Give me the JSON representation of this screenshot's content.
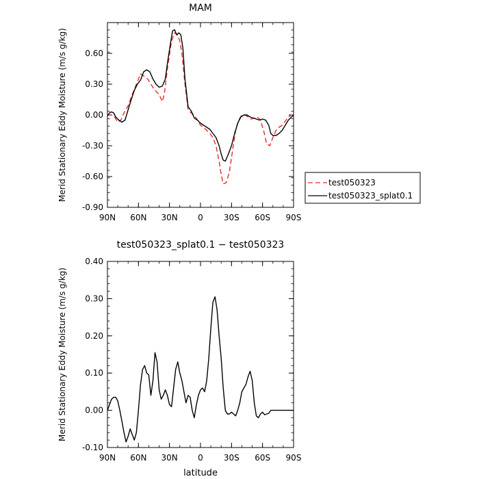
{
  "chart_data": [
    {
      "type": "line",
      "title": "MAM",
      "xlabel": "",
      "ylabel": "Merid Stationary Eddy Moisture (m/s g/kg)",
      "x_ticks": [
        "90N",
        "60N",
        "30N",
        "0",
        "30S",
        "60S",
        "90S"
      ],
      "y_ticks": [
        "0.60",
        "0.30",
        "0.00",
        "-0.30",
        "-0.60",
        "-0.90"
      ],
      "ylim": [
        -0.9,
        0.9
      ],
      "xlim": [
        90,
        -90
      ],
      "legend": {
        "placement": "right, outside plot",
        "entries": [
          "test050323",
          "test050323_splat0.1"
        ]
      },
      "series": [
        {
          "name": "test050323",
          "color": "#e8262a",
          "style": "dashed",
          "x": [
            90,
            86,
            83,
            80,
            77,
            74,
            70,
            66,
            62,
            58,
            55,
            51,
            48,
            44,
            40,
            37,
            35,
            32,
            28,
            25,
            22,
            20,
            18,
            15,
            12,
            9,
            6,
            3,
            0,
            -3,
            -6,
            -9,
            -12,
            -15,
            -18,
            -20,
            -22,
            -25,
            -28,
            -31,
            -34,
            -37,
            -40,
            -43,
            -46,
            -49,
            -52,
            -55,
            -58,
            -61,
            -64,
            -67,
            -70,
            -73,
            -76,
            -79,
            -82,
            -85,
            -88,
            -90
          ],
          "values": [
            0.0,
            0.0,
            -0.02,
            -0.07,
            -0.05,
            0.02,
            0.09,
            0.2,
            0.3,
            0.4,
            0.38,
            0.35,
            0.3,
            0.24,
            0.2,
            0.13,
            0.2,
            0.45,
            0.72,
            0.8,
            0.78,
            0.72,
            0.6,
            0.3,
            0.05,
            0.02,
            0.0,
            -0.05,
            -0.1,
            -0.12,
            -0.15,
            -0.18,
            -0.22,
            -0.3,
            -0.45,
            -0.58,
            -0.67,
            -0.66,
            -0.55,
            -0.35,
            -0.15,
            -0.05,
            0.0,
            0.0,
            -0.02,
            -0.04,
            -0.03,
            -0.02,
            -0.05,
            -0.15,
            -0.28,
            -0.3,
            -0.22,
            -0.15,
            -0.12,
            -0.1,
            -0.06,
            -0.02,
            0.0,
            0.0
          ]
        },
        {
          "name": "test050323_splat0.1",
          "color": "#000000",
          "style": "solid",
          "x": [
            90,
            88,
            86,
            84,
            82,
            79,
            76,
            73,
            70,
            67,
            64,
            61,
            58,
            55,
            52,
            49,
            46,
            43,
            40,
            37,
            34,
            32,
            29,
            27,
            25,
            23,
            21,
            19,
            17,
            15,
            12,
            9,
            6,
            3,
            0,
            -3,
            -6,
            -9,
            -12,
            -15,
            -18,
            -20,
            -22,
            -24,
            -27,
            -30,
            -33,
            -36,
            -39,
            -42,
            -45,
            -48,
            -51,
            -54,
            -57,
            -60,
            -63,
            -66,
            -68,
            -70,
            -73,
            -76,
            -79,
            -82,
            -85,
            -88,
            -90
          ],
          "values": [
            -0.01,
            0.02,
            0.03,
            0.02,
            -0.02,
            -0.05,
            -0.07,
            -0.05,
            0.05,
            0.15,
            0.24,
            0.3,
            0.34,
            0.42,
            0.44,
            0.42,
            0.35,
            0.3,
            0.27,
            0.28,
            0.35,
            0.5,
            0.7,
            0.82,
            0.83,
            0.78,
            0.8,
            0.78,
            0.65,
            0.35,
            0.08,
            0.04,
            -0.03,
            -0.05,
            -0.08,
            -0.1,
            -0.12,
            -0.14,
            -0.18,
            -0.22,
            -0.3,
            -0.38,
            -0.44,
            -0.45,
            -0.38,
            -0.3,
            -0.18,
            -0.08,
            -0.02,
            0.0,
            0.0,
            -0.02,
            -0.03,
            -0.04,
            -0.05,
            -0.04,
            -0.05,
            -0.1,
            -0.18,
            -0.2,
            -0.2,
            -0.18,
            -0.15,
            -0.1,
            -0.05,
            -0.02,
            0.0
          ]
        }
      ]
    },
    {
      "type": "line",
      "title": "test050323_splat0.1 − test050323",
      "xlabel": "latitude",
      "ylabel": "Merid Stationary Eddy Moisture (m/s g/kg)",
      "x_ticks": [
        "90N",
        "60N",
        "30N",
        "0",
        "30S",
        "60S",
        "90S"
      ],
      "y_ticks": [
        "0.40",
        "0.30",
        "0.20",
        "0.10",
        "0.00",
        "-0.10"
      ],
      "ylim": [
        -0.1,
        0.4
      ],
      "xlim": [
        90,
        -90
      ],
      "series": [
        {
          "color": "#000000",
          "style": "solid",
          "x": [
            90,
            88,
            86,
            84,
            82,
            80,
            78,
            76,
            74,
            72,
            70,
            68,
            66,
            64,
            62,
            60,
            58,
            56,
            54,
            52,
            50,
            48,
            46,
            44,
            42,
            40,
            38,
            36,
            34,
            32,
            30,
            28,
            26,
            24,
            22,
            20,
            18,
            16,
            14,
            12,
            10,
            8,
            6,
            4,
            2,
            0,
            -2,
            -4,
            -6,
            -8,
            -10,
            -12,
            -14,
            -16,
            -18,
            -20,
            -22,
            -24,
            -26,
            -28,
            -30,
            -32,
            -34,
            -36,
            -38,
            -40,
            -42,
            -44,
            -46,
            -48,
            -50,
            -52,
            -54,
            -56,
            -58,
            -60,
            -62,
            -64,
            -66,
            -68,
            -70,
            -72,
            -74,
            -76,
            -78,
            -80,
            -82,
            -84,
            -86,
            -88,
            -90
          ],
          "values": [
            0.0,
            0.015,
            0.03,
            0.035,
            0.035,
            0.025,
            0.0,
            -0.03,
            -0.06,
            -0.085,
            -0.07,
            -0.05,
            -0.065,
            -0.08,
            -0.06,
            0.0,
            0.07,
            0.11,
            0.12,
            0.1,
            0.095,
            0.04,
            0.08,
            0.155,
            0.13,
            0.055,
            0.03,
            0.04,
            0.055,
            0.04,
            0.015,
            0.01,
            0.06,
            0.11,
            0.13,
            0.1,
            0.08,
            0.05,
            0.02,
            0.04,
            0.035,
            0.0,
            -0.02,
            0.015,
            0.04,
            0.055,
            0.06,
            0.05,
            0.08,
            0.14,
            0.22,
            0.29,
            0.305,
            0.27,
            0.2,
            0.14,
            0.06,
            0.0,
            -0.01,
            -0.01,
            -0.005,
            -0.01,
            -0.015,
            0.0,
            0.02,
            0.05,
            0.06,
            0.07,
            0.09,
            0.105,
            0.08,
            0.02,
            -0.015,
            -0.02,
            -0.01,
            -0.005,
            -0.012,
            -0.01,
            -0.008,
            0.0,
            0.0,
            0.0,
            0.0,
            0.0,
            0.0,
            0.0,
            0.0,
            0.0,
            0.0,
            0.0,
            0.0
          ]
        }
      ]
    }
  ]
}
